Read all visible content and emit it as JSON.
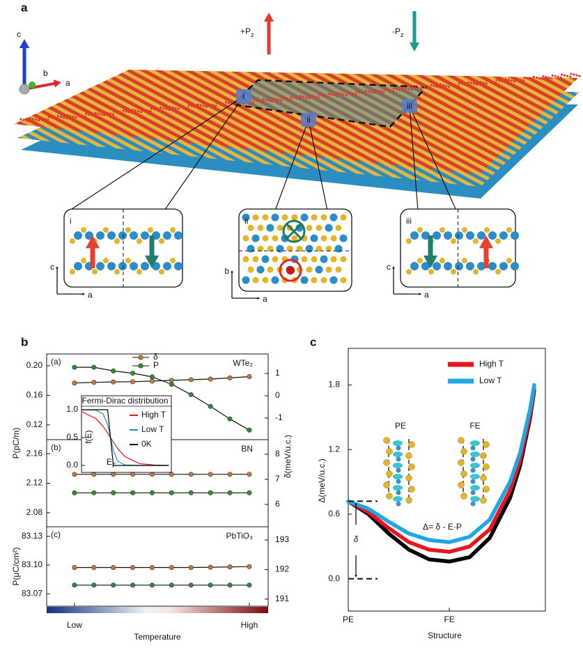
{
  "panel_labels": [
    "a",
    "b",
    "c"
  ],
  "panel_a": {
    "axes": [
      "c",
      "b",
      "a"
    ],
    "polarization": [
      {
        "text": "+P",
        "sub": "z"
      },
      {
        "text": "-P",
        "sub": "z"
      }
    ],
    "regions": [
      "i",
      "ii",
      "iii"
    ],
    "insets": [
      {
        "label": "i",
        "axes": [
          "c",
          "a"
        ]
      },
      {
        "label": "ii",
        "axes": [
          "b",
          "a"
        ]
      },
      {
        "label": "iii",
        "axes": [
          "c",
          "a"
        ]
      }
    ]
  },
  "chart_data": [
    {
      "type": "line",
      "label": "(a)",
      "title": "WTe₂",
      "y_label": "P(pC/m)",
      "legend": "top",
      "x": [
        1,
        2,
        3,
        4,
        5,
        6,
        7,
        8,
        9,
        10
      ],
      "xlim": [
        -0.43,
        10.97
      ],
      "ylim": [
        0.1,
        0.216
      ],
      "yticks": [
        0.12,
        0.16,
        {
          "value": 0.2,
          "label": "0.20"
        }
      ],
      "y2lim": [
        -1.97,
        1.875
      ],
      "y2ticks": [
        -1,
        0,
        1
      ],
      "series": [
        {
          "name": "δ",
          "color": "#c8783a",
          "axis": "y2",
          "values": [
            0.57,
            0.6,
            0.62,
            0.63,
            0.66,
            0.69,
            0.72,
            0.75,
            0.8,
            0.86
          ]
        },
        {
          "name": "P",
          "color": "#2f8f2f",
          "values": [
            0.198,
            0.198,
            0.193,
            0.19,
            0.185,
            0.175,
            0.161,
            0.145,
            0.128,
            0.113
          ]
        }
      ]
    },
    {
      "type": "line",
      "label": "(b)",
      "title": "BN",
      "y2_label": "δ(meV/u.c.)",
      "x": [
        1,
        2,
        3,
        4,
        5,
        6,
        7,
        8,
        9,
        10
      ],
      "xlim": [
        -0.43,
        10.97
      ],
      "ylim": [
        2.061,
        2.179
      ],
      "yticks": [
        2.08,
        2.12,
        2.16
      ],
      "y2lim": [
        5.11,
        8.58
      ],
      "y2ticks": [
        6,
        7,
        8
      ],
      "series": [
        {
          "color": "#c8783a",
          "axis": "y2",
          "values": [
            7.2,
            7.2,
            7.2,
            7.2,
            7.2,
            7.2,
            7.2,
            7.2,
            7.2,
            7.2
          ]
        },
        {
          "color": "#2f8f2f",
          "values": [
            2.107,
            2.107,
            2.107,
            2.107,
            2.107,
            2.107,
            2.107,
            2.107,
            2.107,
            2.107
          ]
        }
      ]
    },
    {
      "type": "line",
      "label": "(c)",
      "title": "PbTiO₃",
      "y_label": "P(μC/cm²)",
      "x_label": "Temperature",
      "x": [
        1,
        2,
        3,
        4,
        5,
        6,
        7,
        8,
        9,
        10
      ],
      "xlim": [
        -0.43,
        10.97
      ],
      "xticks": [
        {
          "value": 1,
          "label": "Low"
        },
        {
          "value": 10,
          "label": "High"
        }
      ],
      "ylim": [
        83.057,
        83.14
      ],
      "yticks": [
        83.07,
        {
          "value": 83.1,
          "label": "83.10"
        },
        83.13
      ],
      "y2lim": [
        190.76,
        193.45
      ],
      "y2ticks": [
        191,
        192,
        193
      ],
      "series": [
        {
          "color": "#c8783a",
          "axis": "y2",
          "values": [
            192.07,
            192.07,
            192.07,
            192.07,
            192.07,
            192.07,
            192.07,
            192.08,
            192.09,
            192.1
          ]
        },
        {
          "color": "#2f8f2f",
          "values": [
            83.079,
            83.079,
            83.079,
            83.079,
            83.079,
            83.079,
            83.079,
            83.079,
            83.079,
            83.079
          ]
        }
      ]
    },
    {
      "type": "line",
      "title": "Fermi-Dirac distribution",
      "y_label": "f(E)",
      "x_label": "E",
      "x_label_sub": "F",
      "x": [
        -1,
        -0.5,
        -0.25,
        -0.1,
        0,
        0.1,
        0.25,
        0.5,
        1,
        1.5,
        2
      ],
      "xlim": [
        -1,
        2.1
      ],
      "ylim": [
        -0.125,
        1.25
      ],
      "yticks": [
        {
          "value": 0,
          "label": "0.0"
        },
        0.5,
        {
          "value": 1,
          "label": "1.0"
        }
      ],
      "series": [
        {
          "name": "High T",
          "color": "#e8141e",
          "values": [
            0.966,
            0.841,
            0.697,
            0.583,
            0.5,
            0.417,
            0.303,
            0.159,
            0.034,
            0.007,
            0.001
          ]
        },
        {
          "name": "Low T",
          "color": "#1b8fc0",
          "values": [
            1,
            0.993,
            0.924,
            0.731,
            0.5,
            0.269,
            0.076,
            0.007,
            0,
            0,
            0
          ]
        },
        {
          "name": "0K",
          "color": "#000000",
          "values": [
            1,
            1,
            1,
            1,
            0.5,
            0,
            0,
            0,
            0,
            0,
            0
          ]
        }
      ]
    },
    {
      "type": "line",
      "y_label": "Δ(meV/u.c.)",
      "x_label": "Structure",
      "legend": "top-right",
      "x": [
        0,
        0.2,
        0.4,
        0.6,
        0.8,
        1,
        1.2,
        1.4,
        1.6,
        1.7,
        1.8,
        1.84
      ],
      "xlim": [
        0,
        1.95
      ],
      "xticks": [
        {
          "value": 0,
          "label": "PE"
        },
        {
          "value": 1,
          "label": "FE"
        }
      ],
      "ylim": [
        -0.3,
        2.14
      ],
      "yticks": [
        {
          "value": 0,
          "label": "0.0"
        },
        0.6,
        1.2,
        1.8
      ],
      "annotations": [
        "PE",
        "FE",
        "Δ= δ - E·P",
        "δ"
      ],
      "delta_range": [
        0,
        0.72
      ],
      "series": [
        {
          "color": "#000000",
          "values": [
            0.72,
            0.6,
            0.42,
            0.27,
            0.18,
            0.16,
            0.2,
            0.38,
            0.75,
            1.05,
            1.5,
            1.75
          ]
        },
        {
          "name": "High T",
          "color": "#e8141e",
          "values": [
            0.72,
            0.62,
            0.47,
            0.34,
            0.27,
            0.25,
            0.3,
            0.46,
            0.82,
            1.1,
            1.53,
            1.77
          ]
        },
        {
          "name": "Low T",
          "color": "#1ea7e1",
          "values": [
            0.72,
            0.65,
            0.53,
            0.42,
            0.36,
            0.34,
            0.39,
            0.55,
            0.9,
            1.17,
            1.58,
            1.8
          ]
        }
      ]
    }
  ]
}
